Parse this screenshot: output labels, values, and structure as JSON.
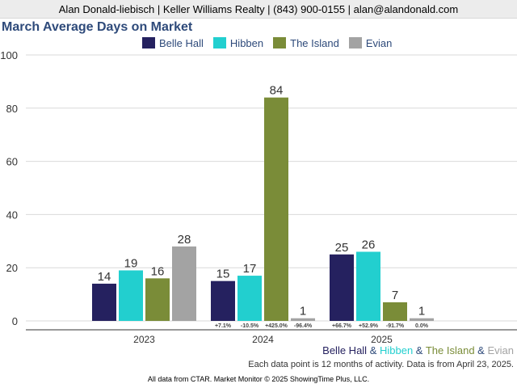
{
  "header": {
    "text": "Alan Donald-liebisch | Keller Williams Realty | (843) 900-0155 | alan@alandonald.com"
  },
  "footer": {
    "series_sep": "&",
    "note": "Each data point is 12 months of activity. Data is from April 23, 2025.",
    "source": "All data from CTAR. Market Monitor © 2025 ShowingTime Plus, LLC."
  },
  "chart_data": {
    "type": "bar",
    "title": "March Average Days on Market",
    "xlabel": "",
    "ylabel": "",
    "ylim": [
      0,
      100
    ],
    "yticks": [
      0,
      20,
      40,
      60,
      80,
      100
    ],
    "grid": true,
    "legend_position": "top",
    "categories": [
      "2023",
      "2024",
      "2025"
    ],
    "series": [
      {
        "name": "Belle Hall",
        "color": "#25215f",
        "values": [
          14,
          15,
          25
        ],
        "changes": [
          "",
          "+7.1%",
          "+66.7%"
        ]
      },
      {
        "name": "Hibben",
        "color": "#22cfcf",
        "values": [
          19,
          17,
          26
        ],
        "changes": [
          "",
          "-10.5%",
          "+52.9%"
        ]
      },
      {
        "name": "The Island",
        "color": "#7a8c38",
        "values": [
          16,
          84,
          7
        ],
        "changes": [
          "",
          "+425.0%",
          "-91.7%"
        ]
      },
      {
        "name": "Evian",
        "color": "#a3a3a3",
        "values": [
          28,
          1,
          1
        ],
        "changes": [
          "",
          "-96.4%",
          "0.0%"
        ]
      }
    ]
  }
}
